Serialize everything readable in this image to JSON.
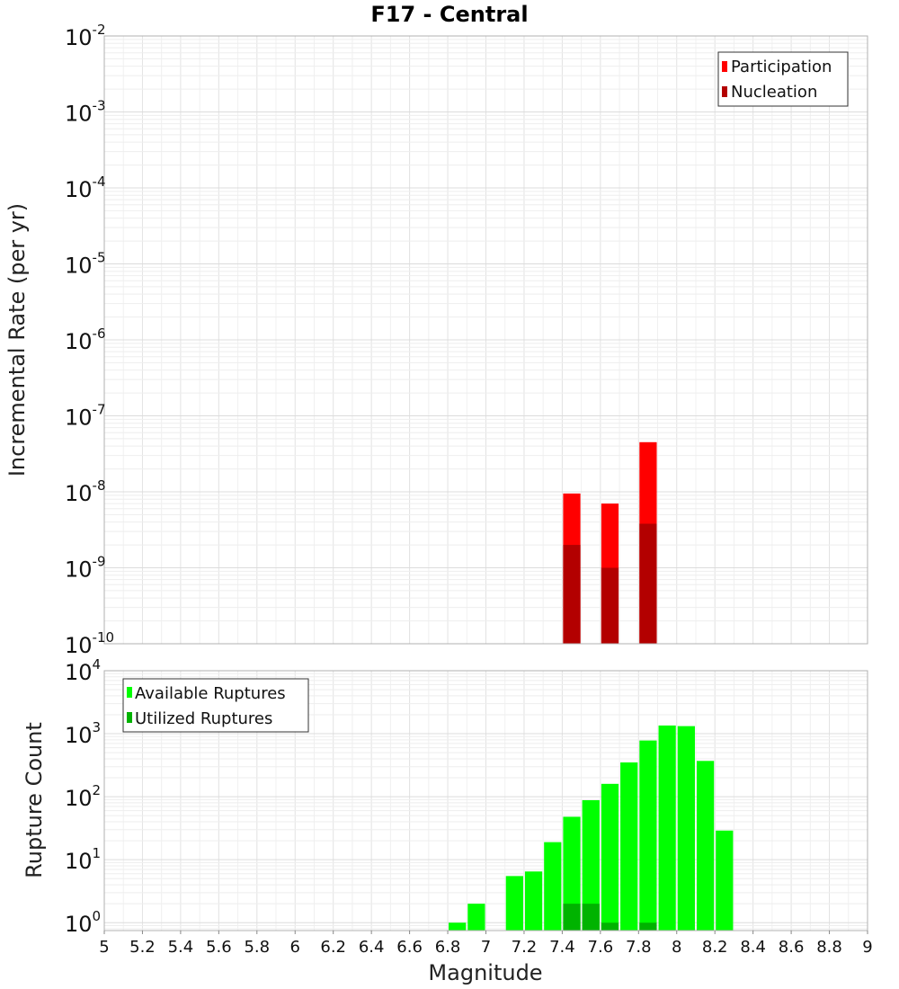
{
  "chart_data": [
    {
      "type": "bar",
      "title": "F17 - Central",
      "xlabel": "",
      "ylabel": "Incremental Rate (per yr)",
      "yscale": "log",
      "ylim": [
        1e-10,
        0.01
      ],
      "xlim": [
        5,
        9
      ],
      "grid": true,
      "y_ticks": [
        {
          "base": "10",
          "exp": "-2",
          "value": 0.01
        },
        {
          "base": "10",
          "exp": "-3",
          "value": 0.001
        },
        {
          "base": "10",
          "exp": "-4",
          "value": 0.0001
        },
        {
          "base": "10",
          "exp": "-5",
          "value": 1e-05
        },
        {
          "base": "10",
          "exp": "-6",
          "value": 1e-06
        },
        {
          "base": "10",
          "exp": "-7",
          "value": 1e-07
        },
        {
          "base": "10",
          "exp": "-8",
          "value": 1e-08
        },
        {
          "base": "10",
          "exp": "-9",
          "value": 1e-09
        },
        {
          "base": "10",
          "exp": "-10",
          "value": 1e-10
        }
      ],
      "legend_position": "top-right",
      "series": [
        {
          "name": "Participation",
          "color": "#ff0000",
          "x": [
            7.45,
            7.65,
            7.85
          ],
          "values": [
            9.5e-09,
            7e-09,
            4.5e-08
          ]
        },
        {
          "name": "Nucleation",
          "color": "#b30000",
          "x": [
            7.45,
            7.65,
            7.85
          ],
          "values": [
            2e-09,
            1e-09,
            3.8e-09
          ]
        }
      ]
    },
    {
      "type": "bar",
      "title": "",
      "xlabel": "Magnitude",
      "ylabel": "Rupture Count",
      "yscale": "log",
      "ylim": [
        0.75,
        10000
      ],
      "xlim": [
        5,
        9
      ],
      "grid": true,
      "x_ticks": [
        "5",
        "5.2",
        "5.4",
        "5.6",
        "5.8",
        "6",
        "6.2",
        "6.4",
        "6.6",
        "6.8",
        "7",
        "7.2",
        "7.4",
        "7.6",
        "7.8",
        "8",
        "8.2",
        "8.4",
        "8.6",
        "8.8",
        "9"
      ],
      "y_ticks": [
        {
          "base": "10",
          "exp": "4",
          "value": 10000
        },
        {
          "base": "10",
          "exp": "3",
          "value": 1000
        },
        {
          "base": "10",
          "exp": "2",
          "value": 100
        },
        {
          "base": "10",
          "exp": "1",
          "value": 10
        },
        {
          "base": "10",
          "exp": "0",
          "value": 1
        }
      ],
      "legend_position": "top-left",
      "series": [
        {
          "name": "Available Ruptures",
          "color": "#00ff00",
          "x": [
            6.85,
            6.95,
            7.15,
            7.25,
            7.35,
            7.45,
            7.55,
            7.65,
            7.75,
            7.85,
            7.95,
            8.05,
            8.15,
            8.25
          ],
          "values": [
            1,
            2,
            5.5,
            6.5,
            19,
            48,
            88,
            160,
            350,
            780,
            1350,
            1320,
            370,
            29
          ]
        },
        {
          "name": "Utilized Ruptures",
          "color": "#00b300",
          "x": [
            7.45,
            7.55,
            7.65,
            7.85
          ],
          "values": [
            2,
            2,
            1,
            1
          ]
        }
      ]
    }
  ]
}
